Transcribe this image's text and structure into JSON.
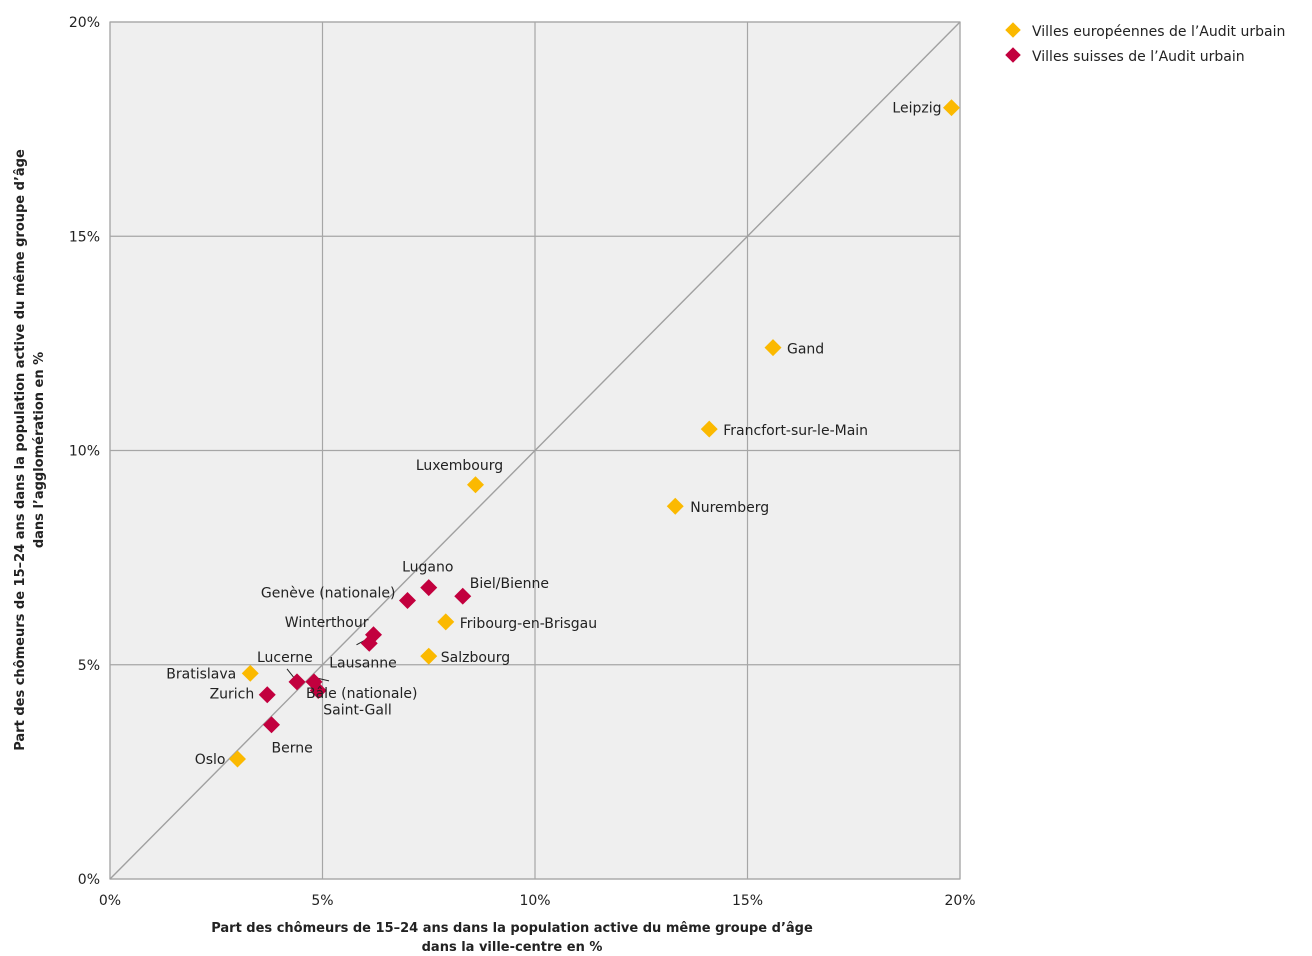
{
  "chart_data": {
    "type": "scatter",
    "xlim": [
      0,
      20
    ],
    "ylim": [
      0,
      20
    ],
    "x_ticks": [
      "0%",
      "5%",
      "10%",
      "15%",
      "20%"
    ],
    "y_ticks": [
      "0%",
      "5%",
      "10%",
      "15%",
      "20%"
    ],
    "xlabel_line1": "Part des chômeurs de 15–24 ans dans la population active du même groupe d’âge",
    "xlabel_line2": "dans la ville-centre en %",
    "ylabel_line1": "Part des chômeurs de 15–24 ans dans la population active du même groupe d’âge",
    "ylabel_line2": "dans l’agglomération en %",
    "grid": true,
    "diagonal": true,
    "legend_position": "top-right",
    "colors": {
      "plot_bg": "#efefef",
      "grid": "#a6a6a6",
      "diagonal": "#a0a0a0",
      "european": "#fbb900",
      "swiss": "#c2003e"
    },
    "series": [
      {
        "name": "Villes européennes de l’Audit urbain",
        "color": "#fbb900",
        "points": [
          {
            "label": "Leipzig",
            "x": 19.8,
            "y": 18.0
          },
          {
            "label": "Gand",
            "x": 15.6,
            "y": 12.4
          },
          {
            "label": "Francfort-sur-le-Main",
            "x": 14.1,
            "y": 10.5
          },
          {
            "label": "Nuremberg",
            "x": 13.3,
            "y": 8.7
          },
          {
            "label": "Luxembourg",
            "x": 8.6,
            "y": 9.2
          },
          {
            "label": "Fribourg-en-Brisgau",
            "x": 7.9,
            "y": 6.0
          },
          {
            "label": "Salzbourg",
            "x": 7.5,
            "y": 5.2
          },
          {
            "label": "Bratislava",
            "x": 3.3,
            "y": 4.8
          },
          {
            "label": "Oslo",
            "x": 3.0,
            "y": 2.8
          }
        ]
      },
      {
        "name": "Villes suisses de l’Audit urbain",
        "color": "#c2003e",
        "points": [
          {
            "label": "Lugano",
            "x": 7.5,
            "y": 6.8
          },
          {
            "label": "Biel/Bienne",
            "x": 8.3,
            "y": 6.6
          },
          {
            "label": "Genève (nationale)",
            "x": 7.0,
            "y": 6.5
          },
          {
            "label": "Winterthour",
            "x": 6.2,
            "y": 5.7
          },
          {
            "label": "Lausanne",
            "x": 6.1,
            "y": 5.5
          },
          {
            "label": "Lucerne",
            "x": 4.4,
            "y": 4.6
          },
          {
            "label": "Bâle (nationale)",
            "x": 4.8,
            "y": 4.6
          },
          {
            "label": "Saint-Gall",
            "x": 4.9,
            "y": 4.4
          },
          {
            "label": "Zurich",
            "x": 3.7,
            "y": 4.3
          },
          {
            "label": "Berne",
            "x": 3.8,
            "y": 3.6
          }
        ]
      }
    ]
  }
}
